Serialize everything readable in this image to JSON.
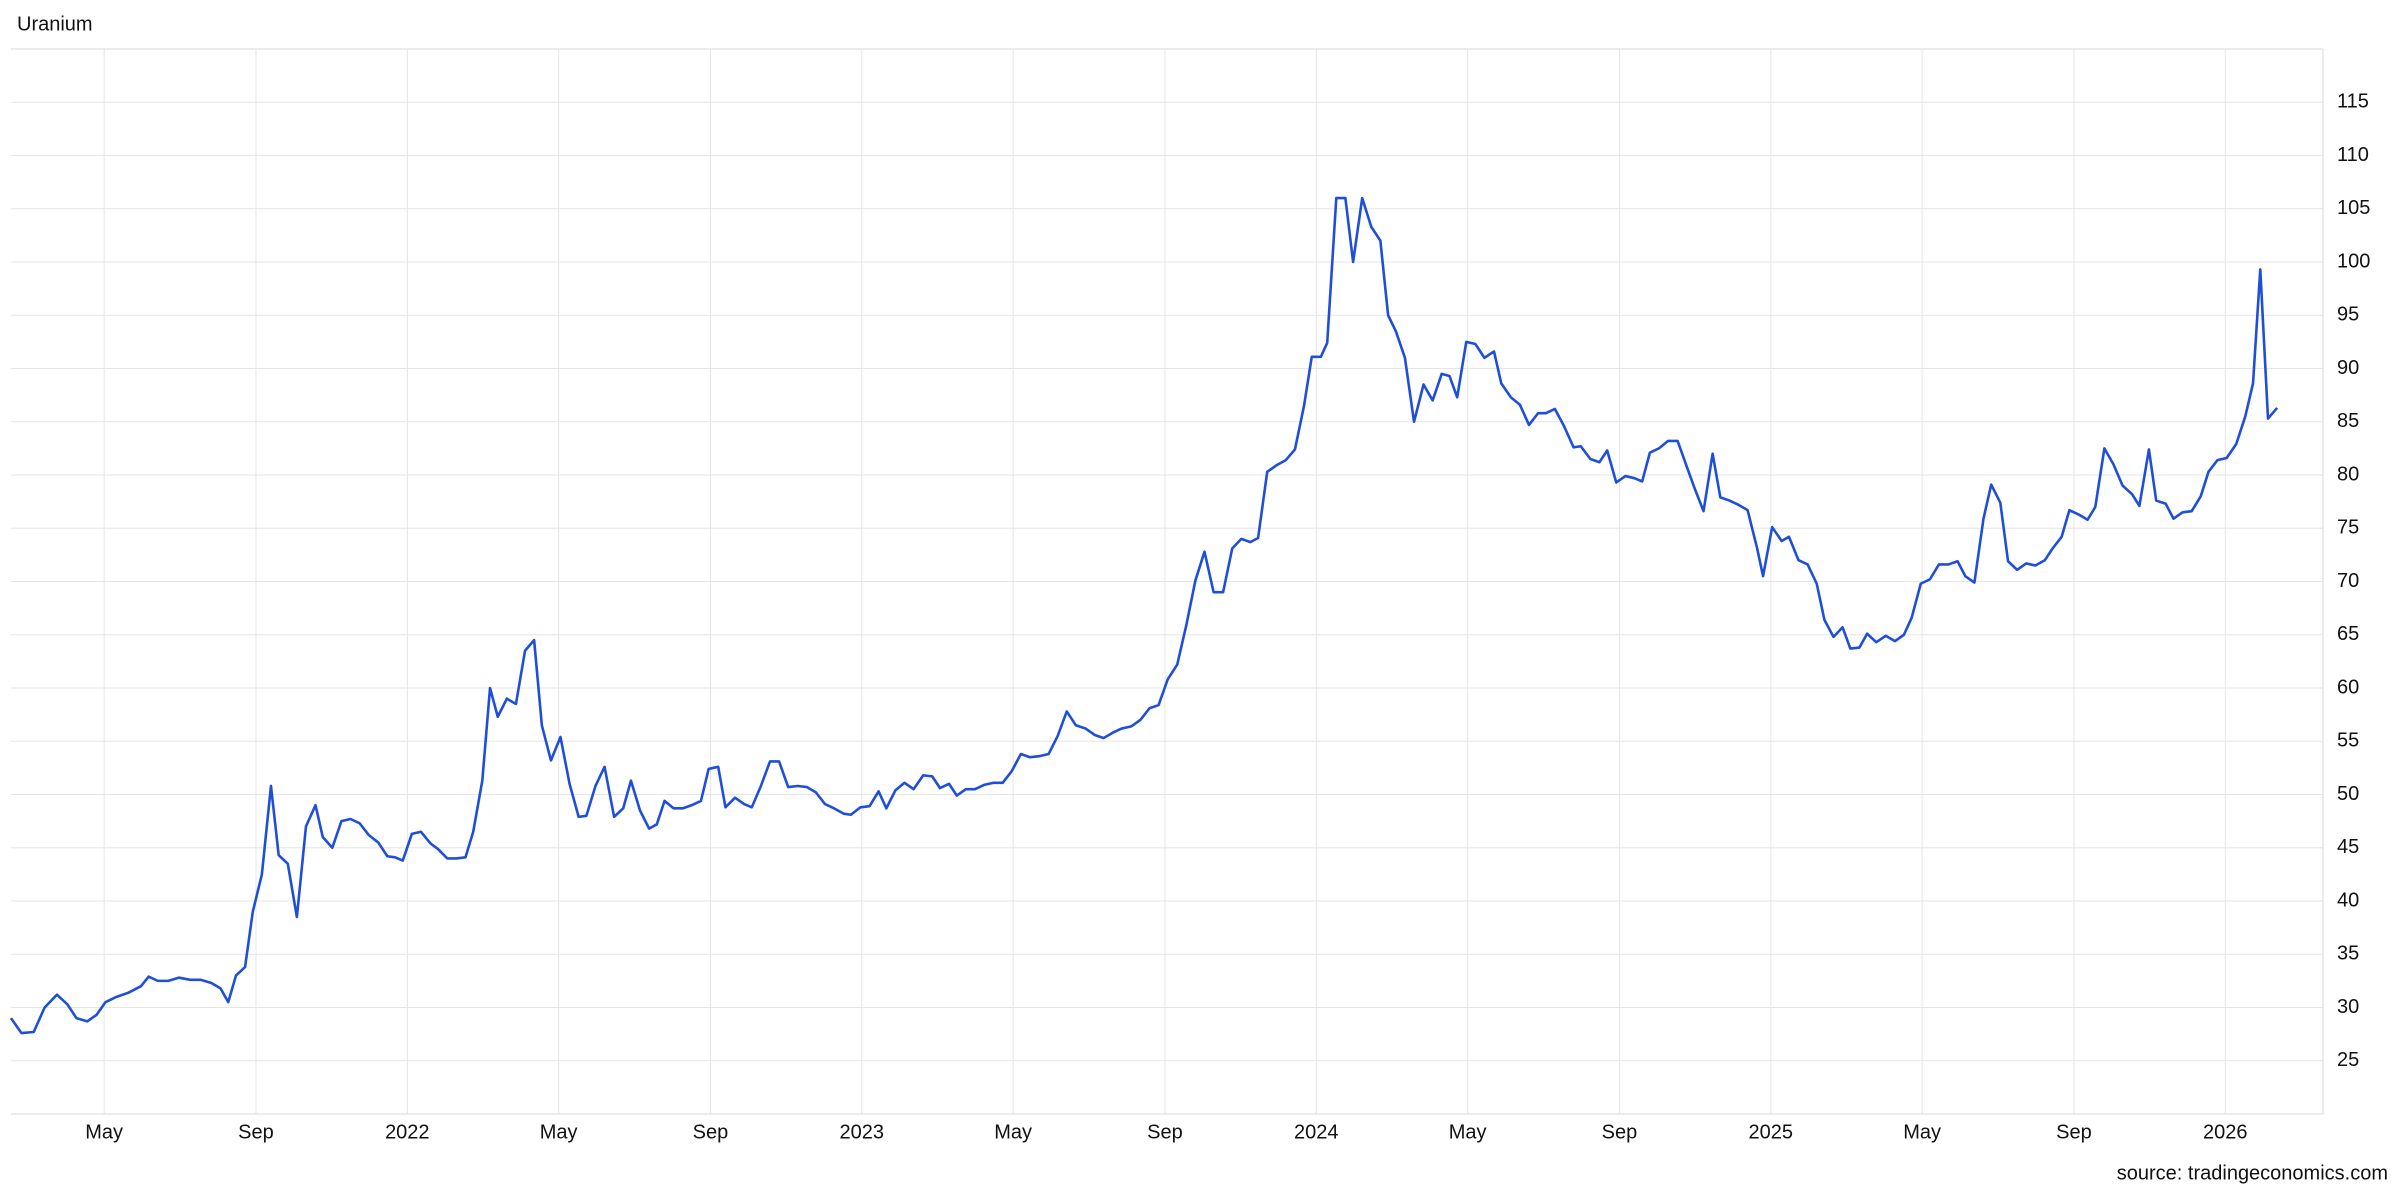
{
  "chart_data": {
    "type": "line",
    "title": "Uranium",
    "source": "source: tradingeconomics.com",
    "xlim": [
      2021.128,
      2026.215
    ],
    "ylim": [
      20,
      120
    ],
    "xticks": [
      {
        "value": 2021.333,
        "label": "May"
      },
      {
        "value": 2021.667,
        "label": "Sep"
      },
      2022,
      {
        "value": 2022.333,
        "label": "May"
      },
      {
        "value": 2022.667,
        "label": "Sep"
      },
      2023,
      {
        "value": 2023.333,
        "label": "May"
      },
      {
        "value": 2023.667,
        "label": "Sep"
      },
      2024,
      {
        "value": 2024.333,
        "label": "May"
      },
      {
        "value": 2024.667,
        "label": "Sep"
      },
      2025,
      {
        "value": 2025.333,
        "label": "May"
      },
      {
        "value": 2025.667,
        "label": "Sep"
      },
      2026
    ],
    "yticks": [
      25,
      30,
      35,
      40,
      45,
      50,
      55,
      60,
      65,
      70,
      75,
      80,
      85,
      90,
      95,
      100,
      105,
      110,
      115
    ],
    "grid": true,
    "x": [
      2021.128,
      2021.151,
      2021.178,
      2021.202,
      2021.229,
      2021.252,
      2021.272,
      2021.296,
      2021.316,
      2021.336,
      2021.36,
      2021.387,
      2021.414,
      2021.431,
      2021.451,
      2021.474,
      2021.498,
      2021.522,
      2021.545,
      2021.569,
      2021.589,
      2021.606,
      2021.623,
      2021.643,
      2021.66,
      2021.68,
      2021.7,
      2021.717,
      2021.737,
      2021.757,
      2021.777,
      2021.798,
      2021.814,
      2021.835,
      2021.855,
      2021.875,
      2021.895,
      2021.915,
      2021.936,
      2021.956,
      2021.973,
      2021.99,
      2022.01,
      2022.03,
      2022.051,
      2022.067,
      2022.088,
      2022.108,
      2022.128,
      2022.145,
      2022.165,
      2022.182,
      2022.199,
      2022.219,
      2022.239,
      2022.259,
      2022.279,
      2022.296,
      2022.316,
      2022.337,
      2022.357,
      2022.377,
      2022.394,
      2022.414,
      2022.434,
      2022.455,
      2022.475,
      2022.492,
      2022.512,
      2022.532,
      2022.549,
      2022.566,
      2022.586,
      2022.606,
      2022.626,
      2022.646,
      2022.663,
      2022.684,
      2022.7,
      2022.721,
      2022.741,
      2022.758,
      2022.778,
      2022.798,
      2022.818,
      2022.838,
      2022.859,
      2022.879,
      2022.899,
      2022.919,
      2022.939,
      2022.96,
      2022.976,
      2022.997,
      2023.017,
      2023.037,
      2023.054,
      2023.074,
      2023.094,
      2023.114,
      2023.135,
      2023.155,
      2023.172,
      2023.192,
      2023.209,
      2023.229,
      2023.249,
      2023.269,
      2023.29,
      2023.31,
      2023.33,
      2023.35,
      2023.37,
      2023.391,
      2023.411,
      2023.431,
      2023.451,
      2023.471,
      2023.492,
      2023.512,
      2023.532,
      2023.552,
      2023.572,
      2023.593,
      2023.613,
      2023.633,
      2023.653,
      2023.673,
      2023.694,
      2023.714,
      2023.734,
      2023.754,
      2023.774,
      2023.795,
      2023.815,
      2023.835,
      2023.855,
      2023.872,
      2023.892,
      2023.912,
      2023.933,
      2023.953,
      2023.973,
      2023.99,
      2024.01,
      2024.024,
      2024.044,
      2024.064,
      2024.081,
      2024.101,
      2024.121,
      2024.141,
      2024.158,
      2024.175,
      2024.195,
      2024.215,
      2024.236,
      2024.256,
      2024.276,
      2024.293,
      2024.31,
      2024.33,
      2024.35,
      2024.37,
      2024.391,
      2024.407,
      2024.428,
      2024.448,
      2024.468,
      2024.488,
      2024.505,
      2024.525,
      2024.545,
      2024.566,
      2024.582,
      2024.603,
      2024.623,
      2024.64,
      2024.66,
      2024.68,
      2024.7,
      2024.717,
      2024.734,
      2024.754,
      2024.774,
      2024.795,
      2024.815,
      2024.832,
      2024.852,
      2024.872,
      2024.889,
      2024.909,
      2024.929,
      2024.949,
      2024.97,
      2024.983,
      2025.003,
      2025.024,
      2025.04,
      2025.061,
      2025.081,
      2025.101,
      2025.118,
      2025.138,
      2025.158,
      2025.175,
      2025.195,
      2025.212,
      2025.232,
      2025.253,
      2025.273,
      2025.293,
      2025.31,
      2025.33,
      2025.35,
      2025.37,
      2025.391,
      2025.411,
      2025.428,
      2025.448,
      2025.468,
      2025.485,
      2025.505,
      2025.522,
      2025.542,
      2025.562,
      2025.582,
      2025.603,
      2025.62,
      2025.64,
      2025.657,
      2025.677,
      2025.697,
      2025.714,
      2025.734,
      2025.754,
      2025.774,
      2025.795,
      2025.811,
      2025.832,
      2025.848,
      2025.869,
      2025.886,
      2025.906,
      2025.926,
      2025.946,
      2025.963,
      2025.983,
      2026.003,
      2026.024,
      2026.044,
      2026.061,
      2026.077,
      2026.094,
      2026.114
    ],
    "series": [
      {
        "name": "Uranium",
        "color": "#1f4fd8",
        "values": [
          29,
          27.6,
          27.7,
          30,
          31.2,
          30.3,
          29,
          28.7,
          29.3,
          30.5,
          31,
          31.4,
          32,
          32.9,
          32.5,
          32.5,
          32.8,
          32.6,
          32.6,
          32.3,
          31.8,
          30.5,
          33,
          33.8,
          39,
          42.5,
          50.8,
          44.3,
          43.5,
          38.5,
          47,
          49,
          46,
          45,
          47.5,
          47.7,
          47.3,
          46.2,
          45.5,
          44.2,
          44.1,
          43.8,
          46.3,
          46.5,
          45.4,
          44.9,
          44,
          44,
          44.1,
          46.5,
          51.3,
          60,
          57.3,
          59,
          58.5,
          63.5,
          64.5,
          56.5,
          53.2,
          55.4,
          51,
          47.9,
          48,
          50.8,
          52.6,
          47.9,
          48.7,
          51.3,
          48.5,
          46.8,
          47.2,
          49.4,
          48.7,
          48.7,
          49,
          49.4,
          52.4,
          52.6,
          48.8,
          49.7,
          49.1,
          48.8,
          50.8,
          53.1,
          53.1,
          50.7,
          50.8,
          50.7,
          50.2,
          49.1,
          48.7,
          48.2,
          48.1,
          48.8,
          48.9,
          50.3,
          48.7,
          50.4,
          51.1,
          50.5,
          51.8,
          51.7,
          50.6,
          51,
          49.9,
          50.5,
          50.5,
          50.9,
          51.1,
          51.1,
          52.2,
          53.8,
          53.5,
          53.6,
          53.8,
          55.5,
          57.8,
          56.5,
          56.2,
          55.6,
          55.3,
          55.8,
          56.2,
          56.4,
          57,
          58.1,
          58.4,
          60.8,
          62.2,
          65.9,
          70.1,
          72.8,
          69,
          69,
          73.1,
          74,
          73.7,
          74.1,
          80.3,
          80.9,
          81.4,
          82.4,
          86.5,
          91.1,
          91.1,
          92.4,
          106,
          106,
          100,
          106,
          103.3,
          102,
          95,
          93.5,
          91,
          85,
          88.5,
          87,
          89.5,
          89.3,
          87.3,
          92.5,
          92.3,
          91,
          91.6,
          88.6,
          87.3,
          86.6,
          84.7,
          85.8,
          85.8,
          86.2,
          84.6,
          82.6,
          82.7,
          81.5,
          81.2,
          82.3,
          79.3,
          79.9,
          79.7,
          79.4,
          82.1,
          82.5,
          83.2,
          83.2,
          80.8,
          78.8,
          76.6,
          82,
          77.9,
          77.6,
          77.2,
          76.7,
          73.1,
          70.5,
          75.1,
          73.8,
          74.2,
          72,
          71.6,
          69.8,
          66.4,
          64.8,
          65.7,
          63.7,
          63.8,
          65.1,
          64.3,
          64.9,
          64.4,
          65,
          66.6,
          69.8,
          70.2,
          71.6,
          71.6,
          71.9,
          70.5,
          69.9,
          75.9,
          79.1,
          77.4,
          71.9,
          71.1,
          71.7,
          71.5,
          72,
          73.1,
          74.2,
          76.7,
          76.3,
          75.8,
          77,
          82.5,
          81,
          79,
          78.2,
          77.1,
          82.4,
          77.6,
          77.3,
          75.9,
          76.5,
          76.6,
          78,
          80.3,
          81.4,
          81.6,
          82.9,
          85.5,
          88.6,
          99.3,
          85.3,
          86.3
        ]
      }
    ]
  }
}
